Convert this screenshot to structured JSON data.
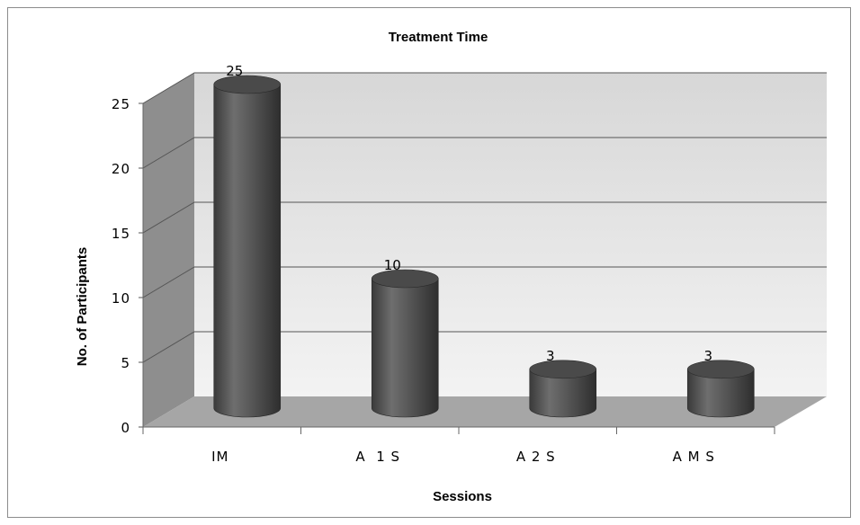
{
  "chart_data": {
    "type": "bar",
    "style": "3d-cylinder",
    "title": "Treatment Time",
    "xlabel": "Sessions",
    "ylabel": "No. of Participants",
    "categories": [
      "IM",
      "A  1 S",
      "A 2 S",
      "A M S"
    ],
    "values": [
      25,
      10,
      3,
      3
    ],
    "data_labels": [
      "25",
      "10",
      "3",
      "3"
    ],
    "ylim": [
      0,
      25
    ],
    "yticks": [
      "0",
      "5",
      "10",
      "15",
      "20",
      "25"
    ],
    "grid": true,
    "legend": "none",
    "colors": {
      "bar": "#555555",
      "back_wall": "#e6e6e6",
      "side_wall": "#8e8e8e",
      "floor": "#a6a6a6",
      "gridline": "#555555"
    }
  }
}
